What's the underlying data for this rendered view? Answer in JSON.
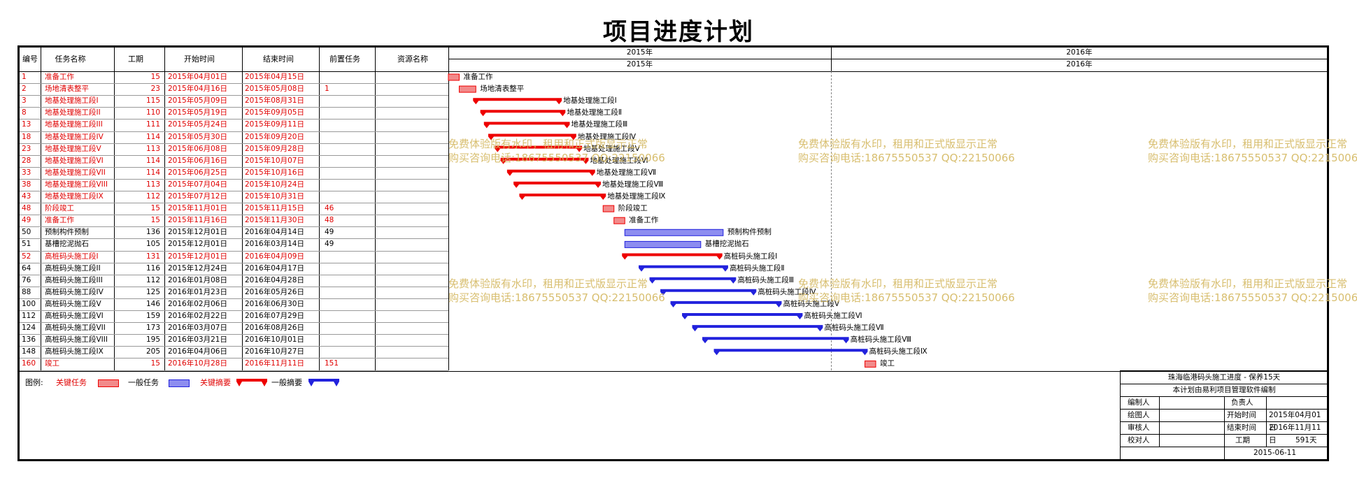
{
  "title": "项目进度计划",
  "columns": {
    "id": "编号",
    "name": "任务名称",
    "dur": "工期",
    "start": "开始时间",
    "end": "结束时间",
    "pred": "前置任务",
    "res": "资源名称"
  },
  "timeline": {
    "year_top_left": "2015年",
    "year_top_right": "2016年",
    "year_bot_left": "2015年",
    "year_bot_right": "2016年"
  },
  "rows": [
    {
      "id": "1",
      "name": "准备工作",
      "dur": "15",
      "start": "2015年04月01日",
      "end": "2015年04月15日",
      "pred": "",
      "crit": true,
      "bar": "normal",
      "color": "red",
      "label": "准备工作"
    },
    {
      "id": "2",
      "name": "场地清表整平",
      "dur": "23",
      "start": "2015年04月16日",
      "end": "2015年05月08日",
      "pred": "1",
      "crit": true,
      "bar": "normal",
      "color": "red",
      "label": "场地清表整平"
    },
    {
      "id": "3",
      "name": "地基处理施工段I",
      "dur": "115",
      "start": "2015年05月09日",
      "end": "2015年08月31日",
      "pred": "",
      "crit": true,
      "bar": "summary",
      "color": "red",
      "label": "地基处理施工段Ⅰ"
    },
    {
      "id": "8",
      "name": "地基处理施工段II",
      "dur": "110",
      "start": "2015年05月19日",
      "end": "2015年09月05日",
      "pred": "",
      "crit": true,
      "bar": "summary",
      "color": "red",
      "label": "地基处理施工段Ⅱ"
    },
    {
      "id": "13",
      "name": "地基处理施工段III",
      "dur": "111",
      "start": "2015年05月24日",
      "end": "2015年09月11日",
      "pred": "",
      "crit": true,
      "bar": "summary",
      "color": "red",
      "label": "地基处理施工段Ⅲ"
    },
    {
      "id": "18",
      "name": "地基处理施工段IV",
      "dur": "114",
      "start": "2015年05月30日",
      "end": "2015年09月20日",
      "pred": "",
      "crit": true,
      "bar": "summary",
      "color": "red",
      "label": "地基处理施工段Ⅳ"
    },
    {
      "id": "23",
      "name": "地基处理施工段V",
      "dur": "113",
      "start": "2015年06月08日",
      "end": "2015年09月28日",
      "pred": "",
      "crit": true,
      "bar": "summary",
      "color": "red",
      "label": "地基处理施工段Ⅴ"
    },
    {
      "id": "28",
      "name": "地基处理施工段VI",
      "dur": "114",
      "start": "2015年06月16日",
      "end": "2015年10月07日",
      "pred": "",
      "crit": true,
      "bar": "summary",
      "color": "red",
      "label": "地基处理施工段Ⅵ"
    },
    {
      "id": "33",
      "name": "地基处理施工段VII",
      "dur": "114",
      "start": "2015年06月25日",
      "end": "2015年10月16日",
      "pred": "",
      "crit": true,
      "bar": "summary",
      "color": "red",
      "label": "地基处理施工段Ⅶ"
    },
    {
      "id": "38",
      "name": "地基处理施工段VIII",
      "dur": "113",
      "start": "2015年07月04日",
      "end": "2015年10月24日",
      "pred": "",
      "crit": true,
      "bar": "summary",
      "color": "red",
      "label": "地基处理施工段Ⅷ"
    },
    {
      "id": "43",
      "name": "地基处理施工段IX",
      "dur": "112",
      "start": "2015年07月12日",
      "end": "2015年10月31日",
      "pred": "",
      "crit": true,
      "bar": "summary",
      "color": "red",
      "label": "地基处理施工段Ⅸ"
    },
    {
      "id": "48",
      "name": "阶段竣工",
      "dur": "15",
      "start": "2015年11月01日",
      "end": "2015年11月15日",
      "pred": "46",
      "crit": true,
      "bar": "normal",
      "color": "red",
      "label": "阶段竣工"
    },
    {
      "id": "49",
      "name": "准备工作",
      "dur": "15",
      "start": "2015年11月16日",
      "end": "2015年11月30日",
      "pred": "48",
      "crit": true,
      "bar": "normal",
      "color": "red",
      "label": "准备工作"
    },
    {
      "id": "50",
      "name": "预制构件预制",
      "dur": "136",
      "start": "2015年12月01日",
      "end": "2016年04月14日",
      "pred": "49",
      "crit": false,
      "bar": "normal",
      "color": "blue",
      "label": "预制构件预制"
    },
    {
      "id": "51",
      "name": "基槽挖泥抛石",
      "dur": "105",
      "start": "2015年12月01日",
      "end": "2016年03月14日",
      "pred": "49",
      "crit": false,
      "bar": "normal",
      "color": "blue",
      "label": "基槽挖泥抛石"
    },
    {
      "id": "52",
      "name": "高桩码头施工段I",
      "dur": "131",
      "start": "2015年12月01日",
      "end": "2016年04月09日",
      "pred": "",
      "crit": true,
      "bar": "summary",
      "color": "red",
      "label": "高桩码头施工段Ⅰ"
    },
    {
      "id": "64",
      "name": "高桩码头施工段II",
      "dur": "116",
      "start": "2015年12月24日",
      "end": "2016年04月17日",
      "pred": "",
      "crit": false,
      "bar": "summary",
      "color": "blue",
      "label": "高桩码头施工段Ⅱ"
    },
    {
      "id": "76",
      "name": "高桩码头施工段III",
      "dur": "112",
      "start": "2016年01月08日",
      "end": "2016年04月28日",
      "pred": "",
      "crit": false,
      "bar": "summary",
      "color": "blue",
      "label": "高桩码头施工段Ⅲ"
    },
    {
      "id": "88",
      "name": "高桩码头施工段IV",
      "dur": "125",
      "start": "2016年01月23日",
      "end": "2016年05月26日",
      "pred": "",
      "crit": false,
      "bar": "summary",
      "color": "blue",
      "label": "高桩码头施工段Ⅳ"
    },
    {
      "id": "100",
      "name": "高桩码头施工段V",
      "dur": "146",
      "start": "2016年02月06日",
      "end": "2016年06月30日",
      "pred": "",
      "crit": false,
      "bar": "summary",
      "color": "blue",
      "label": "高桩码头施工段Ⅴ"
    },
    {
      "id": "112",
      "name": "高桩码头施工段VI",
      "dur": "159",
      "start": "2016年02月22日",
      "end": "2016年07月29日",
      "pred": "",
      "crit": false,
      "bar": "summary",
      "color": "blue",
      "label": "高桩码头施工段Ⅵ"
    },
    {
      "id": "124",
      "name": "高桩码头施工段VII",
      "dur": "173",
      "start": "2016年03月07日",
      "end": "2016年08月26日",
      "pred": "",
      "crit": false,
      "bar": "summary",
      "color": "blue",
      "label": "高桩码头施工段Ⅶ"
    },
    {
      "id": "136",
      "name": "高桩码头施工段VIII",
      "dur": "195",
      "start": "2016年03月21日",
      "end": "2016年10月01日",
      "pred": "",
      "crit": false,
      "bar": "summary",
      "color": "blue",
      "label": "高桩码头施工段Ⅷ"
    },
    {
      "id": "148",
      "name": "高桩码头施工段IX",
      "dur": "205",
      "start": "2016年04月06日",
      "end": "2016年10月27日",
      "pred": "",
      "crit": false,
      "bar": "summary",
      "color": "blue",
      "label": "高桩码头施工段Ⅸ"
    },
    {
      "id": "160",
      "name": "竣工",
      "dur": "15",
      "start": "2016年10月28日",
      "end": "2016年11月11日",
      "pred": "151",
      "crit": true,
      "bar": "normal",
      "color": "red",
      "label": "竣工"
    }
  ],
  "watermark": {
    "line1": "免费体验版有水印，租用和正式版显示正常",
    "line2": "购买咨询电话:18675550537 QQ:22150066"
  },
  "legend": {
    "title": "图例:",
    "crit_task": "关键任务",
    "task": "一般任务",
    "crit_summary": "关键摘要",
    "summary": "一般摘要"
  },
  "titleblock": {
    "project": "珠海临港码头施工进度 - 保养15天",
    "made_by": "本计划由易利项目管理软件编制",
    "editor_lbl": "编制人",
    "owner_lbl": "负责人",
    "drawer_lbl": "绘图人",
    "start_lbl": "开始时间",
    "start_val": "2015年04月01日",
    "reviewer_lbl": "审核人",
    "end_lbl": "结束时间",
    "end_val": "2016年11月11日",
    "checker_lbl": "校对人",
    "dur_lbl": "工期",
    "dur_val": "591天",
    "date": "2015-06-11"
  },
  "colors": {
    "crit": "#ee0000",
    "normal": "#2222dd",
    "crit_fill": "#f28a8a",
    "normal_fill": "#8d8df0",
    "watermark": "#d4b860"
  }
}
